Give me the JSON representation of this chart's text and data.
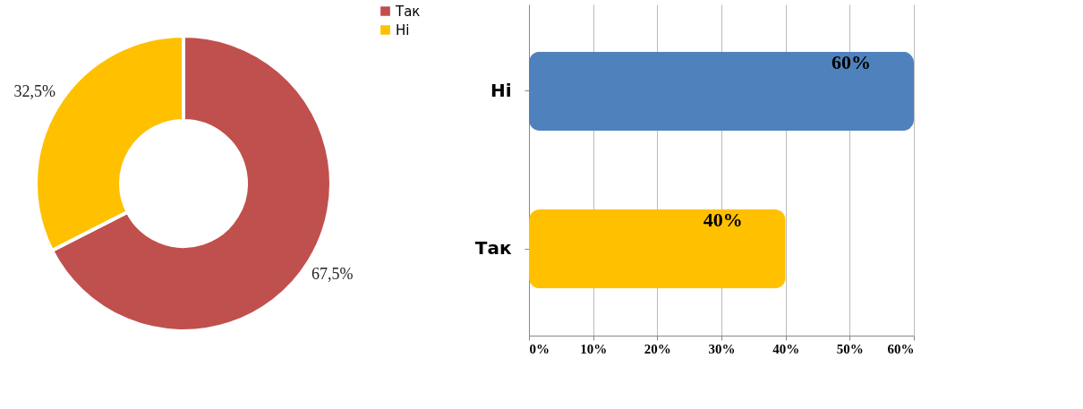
{
  "chart_data": [
    {
      "type": "donut",
      "categories": [
        "Так",
        "Ні"
      ],
      "values": [
        67.5,
        32.5
      ],
      "colors": [
        "#c0504d",
        "#ffc000"
      ],
      "value_labels": [
        "67,5%",
        "32,5%"
      ],
      "legend": "right"
    },
    {
      "type": "bar",
      "orientation": "horizontal",
      "categories": [
        "Ні",
        "Так"
      ],
      "values": [
        60,
        40
      ],
      "colors": [
        "#4f81bd",
        "#ffc000"
      ],
      "value_labels": [
        "60%",
        "40%"
      ],
      "xlim": [
        0,
        60
      ],
      "xticks": [
        {
          "value": 0,
          "label": "0%"
        },
        {
          "value": 10,
          "label": "10%"
        },
        {
          "value": 20,
          "label": "20%"
        },
        {
          "value": 30,
          "label": "30%"
        },
        {
          "value": 40,
          "label": "40%"
        },
        {
          "value": 50,
          "label": "50%"
        },
        {
          "value": 60,
          "label": "60%"
        }
      ],
      "grid": "x"
    }
  ]
}
